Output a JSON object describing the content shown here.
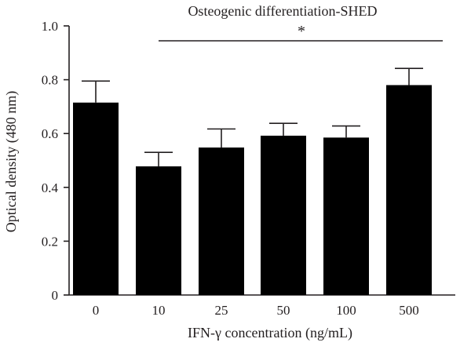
{
  "chart_data": {
    "type": "bar",
    "title": "Osteogenic differentiation-SHED",
    "xlabel": "IFN-γ concentration (ng/mL)",
    "ylabel": "Optical density (480 nm)",
    "categories": [
      "0",
      "10",
      "25",
      "50",
      "100",
      "500"
    ],
    "values": [
      0.715,
      0.478,
      0.548,
      0.592,
      0.585,
      0.78
    ],
    "error_upper": [
      0.795,
      0.53,
      0.617,
      0.638,
      0.628,
      0.842
    ],
    "ylim": [
      0,
      1.0
    ],
    "yticks": [
      "0",
      "0.2",
      "0.4",
      "0.6",
      "0.8",
      "1.0"
    ],
    "bar_color": "#000000",
    "grid": false,
    "significance": {
      "from_category": "10",
      "to_category": "500",
      "label": "*"
    }
  }
}
